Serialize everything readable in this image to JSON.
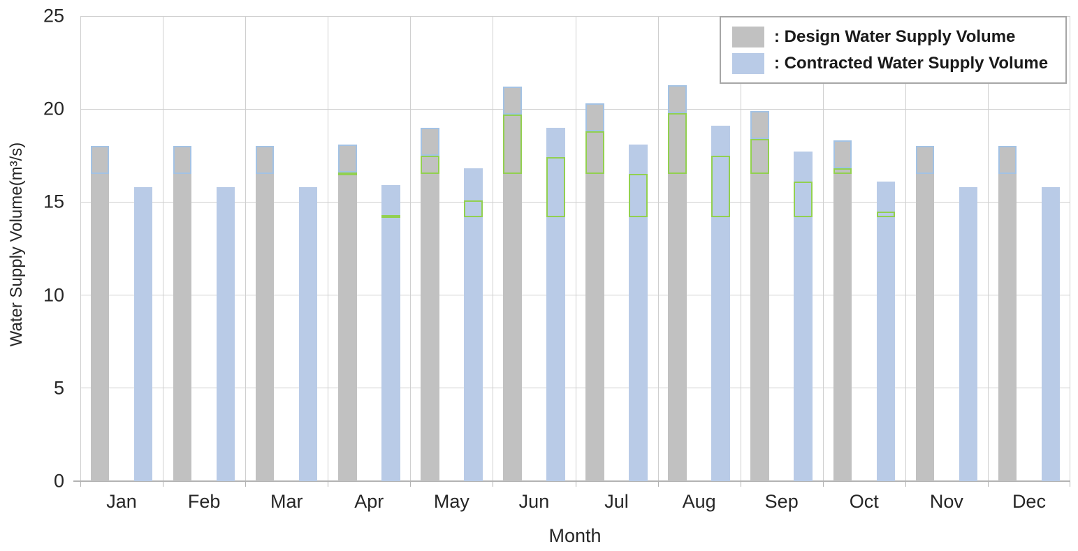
{
  "chart_data": {
    "type": "bar",
    "title": "",
    "xlabel": "Month",
    "ylabel": "Water Supply Volume(m³/s)",
    "ylim": [
      0,
      25
    ],
    "yticks": [
      0,
      5,
      10,
      15,
      20,
      25
    ],
    "grid": true,
    "legend_position": "top-right",
    "categories": [
      "Jan",
      "Feb",
      "Mar",
      "Apr",
      "May",
      "Jun",
      "Jul",
      "Aug",
      "Sep",
      "Oct",
      "Nov",
      "Dec"
    ],
    "series": [
      {
        "name": ": Design Water Supply Volume",
        "color": "#c1c1c1",
        "values": [
          18.0,
          18.0,
          18.0,
          18.1,
          19.0,
          21.2,
          20.3,
          21.3,
          19.9,
          18.3,
          18.0,
          18.0
        ]
      },
      {
        "name": ": Contracted Water Supply Volume",
        "color": "#b9cbe7",
        "values": [
          15.8,
          15.8,
          15.8,
          15.9,
          16.8,
          19.0,
          18.1,
          19.1,
          17.7,
          16.1,
          15.8,
          15.8
        ]
      }
    ],
    "overlay_outlines": [
      {
        "target_series": 0,
        "border_color": "#a3c2e4",
        "ranges": [
          [
            16.5,
            18.0
          ],
          [
            16.5,
            18.0
          ],
          [
            16.5,
            18.0
          ],
          [
            16.6,
            18.1
          ],
          [
            17.5,
            19.0
          ],
          [
            19.7,
            21.2
          ],
          [
            18.8,
            20.3
          ],
          [
            19.8,
            21.3
          ],
          [
            18.4,
            19.9
          ],
          [
            16.8,
            18.3
          ],
          [
            16.5,
            18.0
          ],
          [
            16.5,
            18.0
          ]
        ]
      },
      {
        "target_series": 0,
        "border_color": "#92d050",
        "ranges": [
          null,
          null,
          null,
          [
            16.5,
            16.6
          ],
          [
            16.5,
            17.5
          ],
          [
            16.5,
            19.7
          ],
          [
            16.5,
            18.8
          ],
          [
            16.5,
            19.8
          ],
          [
            16.5,
            18.4
          ],
          [
            16.5,
            16.8
          ],
          null,
          null
        ]
      },
      {
        "target_series": 1,
        "border_color": "#92d050",
        "ranges": [
          null,
          null,
          null,
          [
            14.2,
            14.3
          ],
          [
            14.2,
            15.1
          ],
          [
            14.2,
            17.4
          ],
          [
            14.2,
            16.5
          ],
          [
            14.2,
            17.5
          ],
          [
            14.2,
            16.1
          ],
          [
            14.2,
            14.5
          ],
          null,
          null
        ]
      }
    ]
  }
}
